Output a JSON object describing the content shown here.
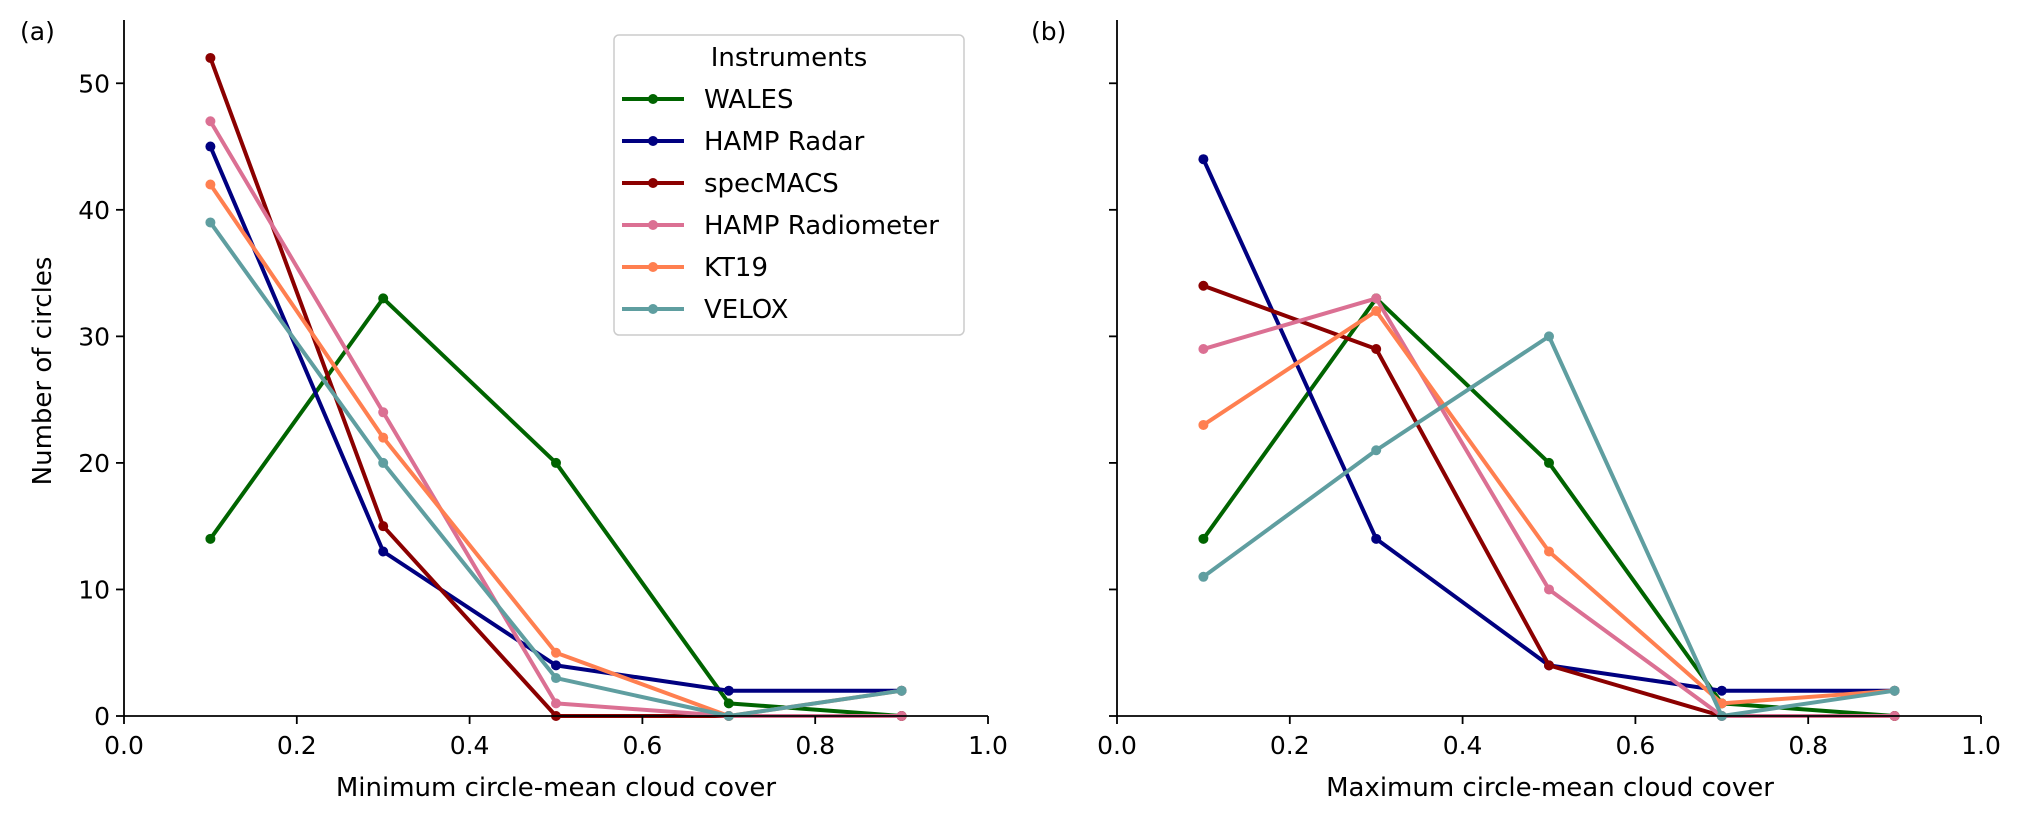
{
  "legend": {
    "title": "Instruments",
    "placement": "upper-right of panel (a)"
  },
  "chart_data": [
    {
      "type": "line",
      "panel_label": "(a)",
      "xlabel": "Minimum circle-mean cloud cover",
      "ylabel": "Number of circles",
      "xlim": [
        0.0,
        1.0
      ],
      "ylim": [
        0,
        55
      ],
      "xticks": [
        "0.0",
        "0.2",
        "0.4",
        "0.6",
        "0.8",
        "1.0"
      ],
      "yticks": [
        "0",
        "10",
        "20",
        "30",
        "40",
        "50"
      ],
      "x": [
        0.1,
        0.3,
        0.5,
        0.7,
        0.9
      ],
      "series": [
        {
          "name": "WALES",
          "color": "#006400",
          "values": [
            14,
            33,
            20,
            1,
            0
          ]
        },
        {
          "name": "HAMP Radar",
          "color": "#000080",
          "values": [
            45,
            13,
            4,
            2,
            2
          ]
        },
        {
          "name": "specMACS",
          "color": "#8b0000",
          "values": [
            52,
            15,
            0,
            0,
            0
          ]
        },
        {
          "name": "HAMP Radiometer",
          "color": "#db7093",
          "values": [
            47,
            24,
            1,
            0,
            0
          ]
        },
        {
          "name": "KT19",
          "color": "#ff7f50",
          "values": [
            42,
            22,
            5,
            0,
            2
          ]
        },
        {
          "name": "VELOX",
          "color": "#5f9ea0",
          "values": [
            39,
            20,
            3,
            0,
            2
          ]
        }
      ]
    },
    {
      "type": "line",
      "panel_label": "(b)",
      "xlabel": "Maximum circle-mean cloud cover",
      "ylabel": "",
      "xlim": [
        0.0,
        1.0
      ],
      "ylim": [
        0,
        55
      ],
      "xticks": [
        "0.0",
        "0.2",
        "0.4",
        "0.6",
        "0.8",
        "1.0"
      ],
      "yticks": [],
      "x": [
        0.1,
        0.3,
        0.5,
        0.7,
        0.9
      ],
      "series": [
        {
          "name": "WALES",
          "color": "#006400",
          "values": [
            14,
            33,
            20,
            1,
            0
          ]
        },
        {
          "name": "HAMP Radar",
          "color": "#000080",
          "values": [
            44,
            14,
            4,
            2,
            2
          ]
        },
        {
          "name": "specMACS",
          "color": "#8b0000",
          "values": [
            34,
            29,
            4,
            0,
            0
          ]
        },
        {
          "name": "HAMP Radiometer",
          "color": "#db7093",
          "values": [
            29,
            33,
            10,
            0,
            0
          ]
        },
        {
          "name": "KT19",
          "color": "#ff7f50",
          "values": [
            23,
            32,
            13,
            1,
            2
          ]
        },
        {
          "name": "VELOX",
          "color": "#5f9ea0",
          "values": [
            11,
            21,
            30,
            0,
            2
          ]
        }
      ]
    }
  ]
}
